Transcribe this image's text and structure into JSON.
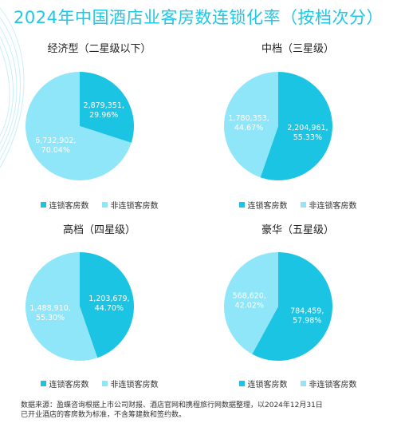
{
  "title": "2024年中国酒店业客房数连锁化率（按档次分）",
  "colors": {
    "chain": "#1bc4e2",
    "nonchain": "#8fe6f8",
    "title": "#1ec8e6"
  },
  "chart_data": [
    {
      "type": "pie",
      "title": "经济型（二星级以下）",
      "labels": [
        "连锁客房数",
        "非连锁客房数"
      ],
      "values": [
        2879351,
        6732902
      ],
      "value_labels": [
        "2,879,351,",
        "6,732,902,"
      ],
      "percent_labels": [
        "29.96%",
        "70.04%"
      ],
      "legend": "bottom"
    },
    {
      "type": "pie",
      "title": "中档（三星级）",
      "labels": [
        "连锁客房数",
        "非连锁客房数"
      ],
      "values": [
        2204961,
        1780353
      ],
      "value_labels": [
        "2,204,961,",
        "1,780,353,"
      ],
      "percent_labels": [
        "55.33%",
        "44.67%"
      ],
      "legend": "bottom"
    },
    {
      "type": "pie",
      "title": "高档（四星级）",
      "labels": [
        "连锁客房数",
        "非连锁客房数"
      ],
      "values": [
        1203679,
        1488910
      ],
      "value_labels": [
        "1,203,679,",
        "1,488,910,"
      ],
      "percent_labels": [
        "44.70%",
        "55.30%"
      ],
      "legend": "bottom"
    },
    {
      "type": "pie",
      "title": "豪华（五星级）",
      "labels": [
        "连锁客房数",
        "非连锁客房数"
      ],
      "values": [
        784459,
        568620
      ],
      "value_labels": [
        "784,459,",
        "568,620,"
      ],
      "percent_labels": [
        "57.98%",
        "42.02%"
      ],
      "legend": "bottom"
    }
  ],
  "footnote": {
    "line1": "数据来源：盈蝶咨询根据上市公司财报、酒店官网和携程旅行网数据整理，以2024年12月31日",
    "line2": "已开业酒店的客房数为标准，不含筹建数和签约数。"
  }
}
